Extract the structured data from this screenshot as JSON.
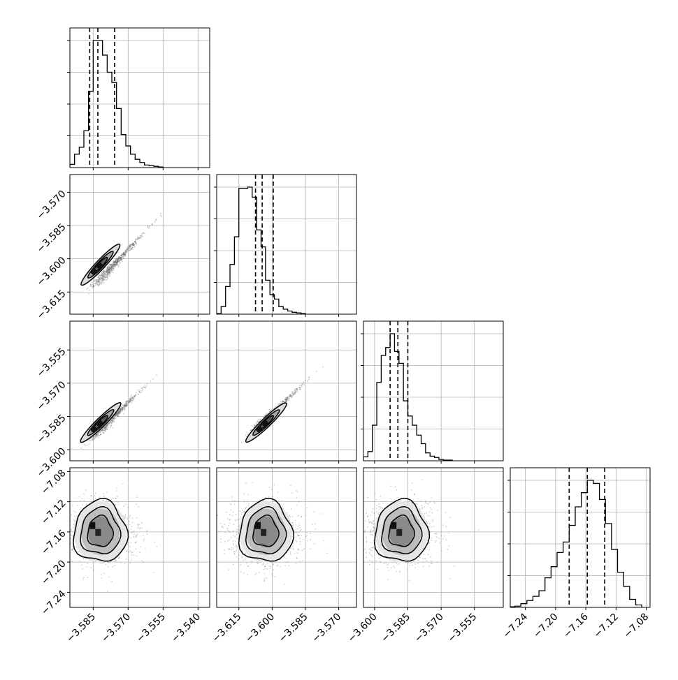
{
  "chart_data": {
    "type": "corner",
    "n_params": 4,
    "axis_ranges": [
      [
        -3.595,
        -3.535
      ],
      [
        -3.625,
        -3.562
      ],
      [
        -3.605,
        -3.542
      ],
      [
        -7.26,
        -7.075
      ]
    ],
    "x_tick_values": [
      [
        -3.585,
        -3.57,
        -3.555,
        -3.54
      ],
      [
        -3.615,
        -3.6,
        -3.585,
        -3.57
      ],
      [
        -3.6,
        -3.585,
        -3.57,
        -3.555
      ],
      [
        -7.24,
        -7.2,
        -7.16,
        -7.12,
        -7.08
      ]
    ],
    "x_tick_labels": [
      [
        "−3.585",
        "−3.570",
        "−3.555",
        "−3.540"
      ],
      [
        "−3.615",
        "−3.600",
        "−3.585",
        "−3.570"
      ],
      [
        "−3.600",
        "−3.585",
        "−3.570",
        "−3.555"
      ],
      [
        "−7.24",
        "−7.20",
        "−7.16",
        "−7.12",
        "−7.08"
      ]
    ],
    "y_tick_values": [
      null,
      [
        -3.57,
        -3.585,
        -3.6,
        -3.615
      ],
      [
        -3.555,
        -3.57,
        -3.585,
        -3.6
      ],
      [
        -7.08,
        -7.12,
        -7.16,
        -7.2,
        -7.24
      ]
    ],
    "y_tick_labels": [
      null,
      [
        "−3.570",
        "−3.585",
        "−3.600",
        "−3.615"
      ],
      [
        "−3.555",
        "−3.570",
        "−3.585",
        "−3.600"
      ],
      [
        "−7.08",
        "−7.12",
        "−7.16",
        "−7.20",
        "−7.24"
      ]
    ],
    "quantiles": [
      [
        -3.5865,
        -3.583,
        -3.5758
      ],
      [
        -3.6075,
        -3.6045,
        -3.5995
      ],
      [
        -3.593,
        -3.5895,
        -3.585
      ],
      [
        -7.182,
        -7.158,
        -7.135
      ]
    ],
    "histograms": [
      {
        "bins": [
          -3.595,
          -3.593,
          -3.591,
          -3.589,
          -3.587,
          -3.585,
          -3.583,
          -3.581,
          -3.579,
          -3.577,
          -3.575,
          -3.573,
          -3.571,
          -3.569,
          -3.567,
          -3.565,
          -3.563,
          -3.561,
          -3.559,
          -3.557,
          -3.555
        ],
        "counts": [
          5,
          21,
          32,
          58,
          120,
          200,
          200,
          177,
          150,
          134,
          93,
          52,
          34,
          21,
          13,
          8,
          4,
          3,
          2,
          1
        ]
      },
      {
        "bins": [
          -3.625,
          -3.623,
          -3.621,
          -3.619,
          -3.617,
          -3.615,
          -3.613,
          -3.611,
          -3.609,
          -3.607,
          -3.605,
          -3.603,
          -3.601,
          -3.599,
          -3.597,
          -3.595,
          -3.593,
          -3.591,
          -3.589,
          -3.587,
          -3.585
        ],
        "counts": [
          1,
          12,
          44,
          79,
          123,
          200,
          200,
          202,
          186,
          134,
          107,
          54,
          31,
          24,
          12,
          8,
          5,
          3,
          2,
          1
        ]
      },
      {
        "bins": [
          -3.605,
          -3.603,
          -3.601,
          -3.599,
          -3.597,
          -3.595,
          -3.593,
          -3.591,
          -3.589,
          -3.587,
          -3.585,
          -3.583,
          -3.581,
          -3.579,
          -3.577,
          -3.575,
          -3.573,
          -3.571,
          -3.569,
          -3.567,
          -3.565
        ],
        "counts": [
          6,
          14,
          54,
          119,
          160,
          172,
          193,
          166,
          148,
          91,
          68,
          54,
          39,
          26,
          12,
          7,
          5,
          2,
          1,
          1
        ]
      },
      {
        "bins": [
          -7.262,
          -7.254,
          -7.246,
          -7.238,
          -7.23,
          -7.222,
          -7.214,
          -7.206,
          -7.198,
          -7.19,
          -7.182,
          -7.174,
          -7.166,
          -7.158,
          -7.15,
          -7.142,
          -7.134,
          -7.126,
          -7.118,
          -7.11,
          -7.102,
          -7.094,
          -7.086
        ],
        "counts": [
          1,
          2,
          6,
          11,
          18,
          27,
          48,
          66,
          89,
          106,
          133,
          163,
          186,
          206,
          201,
          175,
          136,
          94,
          57,
          34,
          13,
          4
        ]
      }
    ],
    "correlated_pairs": [
      {
        "row": 1,
        "col": 0,
        "line": [
          [
            -3.5935,
            -3.622
          ],
          [
            -3.545,
            -3.568
          ]
        ],
        "peak": [
          -3.5835,
          -3.6045
        ]
      },
      {
        "row": 2,
        "col": 0,
        "line": [
          [
            -3.5935,
            -3.603
          ],
          [
            -3.545,
            -3.553
          ]
        ],
        "peak": [
          -3.5835,
          -3.5895
        ]
      },
      {
        "row": 2,
        "col": 1,
        "line": [
          [
            -3.62,
            -3.603
          ],
          [
            -3.568,
            -3.553
          ]
        ],
        "peak": [
          -3.6045,
          -3.5895
        ]
      }
    ],
    "blob_pairs": [
      {
        "row": 3,
        "col": 0,
        "center": [
          -3.5835,
          -7.158
        ]
      },
      {
        "row": 3,
        "col": 1,
        "center": [
          -3.6045,
          -7.158
        ]
      },
      {
        "row": 3,
        "col": 2,
        "center": [
          -3.5895,
          -7.158
        ]
      }
    ],
    "grid": true,
    "title": "",
    "xlabel": "",
    "ylabel": ""
  }
}
